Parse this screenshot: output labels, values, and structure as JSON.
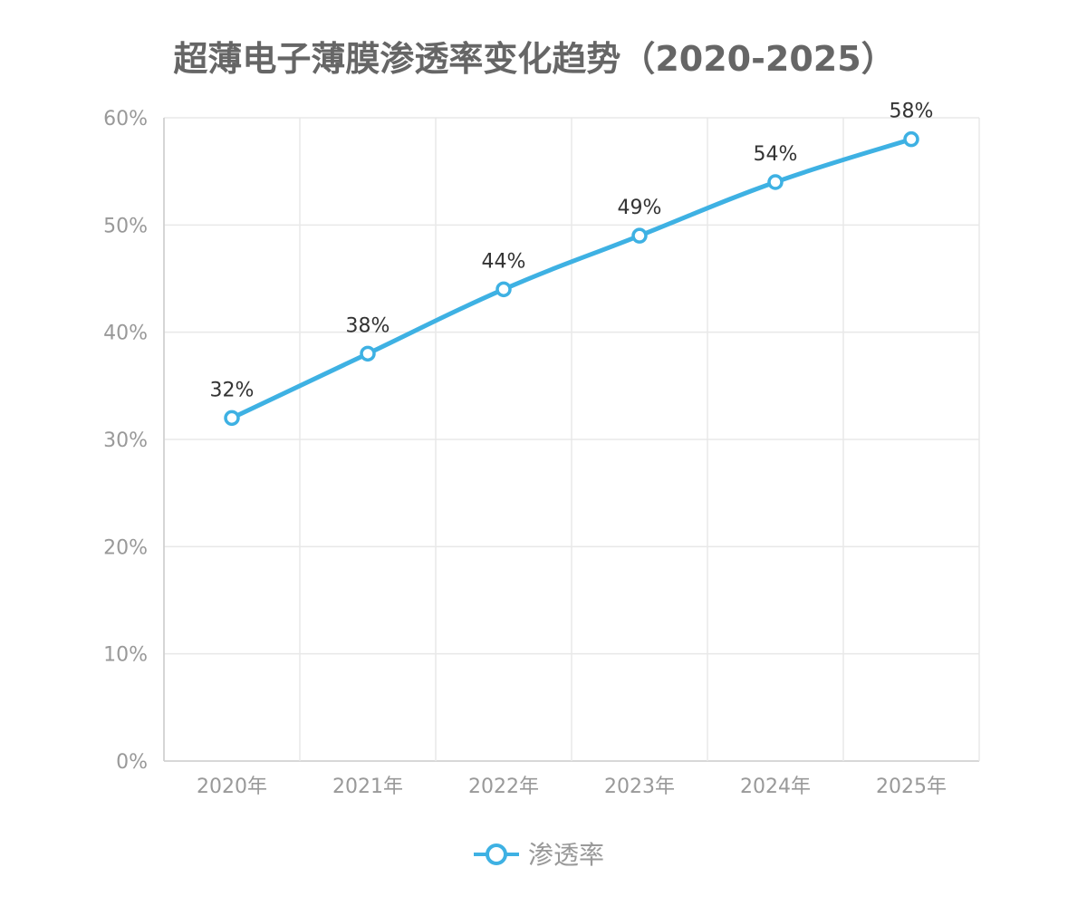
{
  "chart_data": {
    "type": "line",
    "title": "超薄电子薄膜渗透率变化趋势（2020-2025）",
    "categories": [
      "2020年",
      "2021年",
      "2022年",
      "2023年",
      "2024年",
      "2025年"
    ],
    "series": [
      {
        "name": "渗透率",
        "values": [
          32,
          38,
          44,
          49,
          54,
          58
        ],
        "color": "#3eb1e3"
      }
    ],
    "data_labels": [
      "32%",
      "38%",
      "44%",
      "49%",
      "54%",
      "58%"
    ],
    "ylim": [
      0,
      60
    ],
    "yticks": [
      "0%",
      "10%",
      "20%",
      "30%",
      "40%",
      "50%",
      "60%"
    ],
    "grid": true,
    "smooth": true,
    "legend": "bottom"
  }
}
